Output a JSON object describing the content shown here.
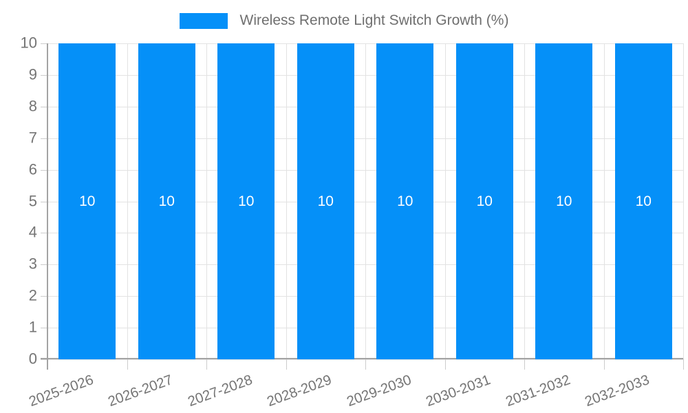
{
  "chart_data": {
    "type": "bar",
    "title": "Wireless Remote Light Switch Growth (%)",
    "categories": [
      "2025-2026",
      "2026-2027",
      "2027-2028",
      "2028-2029",
      "2029-2030",
      "2030-2031",
      "2031-2032",
      "2032-2033"
    ],
    "values": [
      10,
      10,
      10,
      10,
      10,
      10,
      10,
      10
    ],
    "bar_labels": [
      "10",
      "10",
      "10",
      "10",
      "10",
      "10",
      "10",
      "10"
    ],
    "series": [
      {
        "name": "Wireless Remote Light Switch Growth (%)",
        "values": [
          10,
          10,
          10,
          10,
          10,
          10,
          10,
          10
        ]
      }
    ],
    "xlabel": "",
    "ylabel": "",
    "ylim": [
      0,
      10
    ],
    "yticks": [
      0,
      1,
      2,
      3,
      4,
      5,
      6,
      7,
      8,
      9,
      10
    ],
    "grid": true,
    "legend_position": "top-center",
    "x_label_rotation_deg": -20,
    "colors": {
      "bar": "#0590f8",
      "bar_label": "#ffffff",
      "axis_line": "#a3a3a3",
      "grid_line": "#e2e2e2",
      "tick_mark": "#cccccc",
      "tick_label": "#757575",
      "legend_text": "#6f6f6f",
      "background": "#ffffff"
    }
  }
}
